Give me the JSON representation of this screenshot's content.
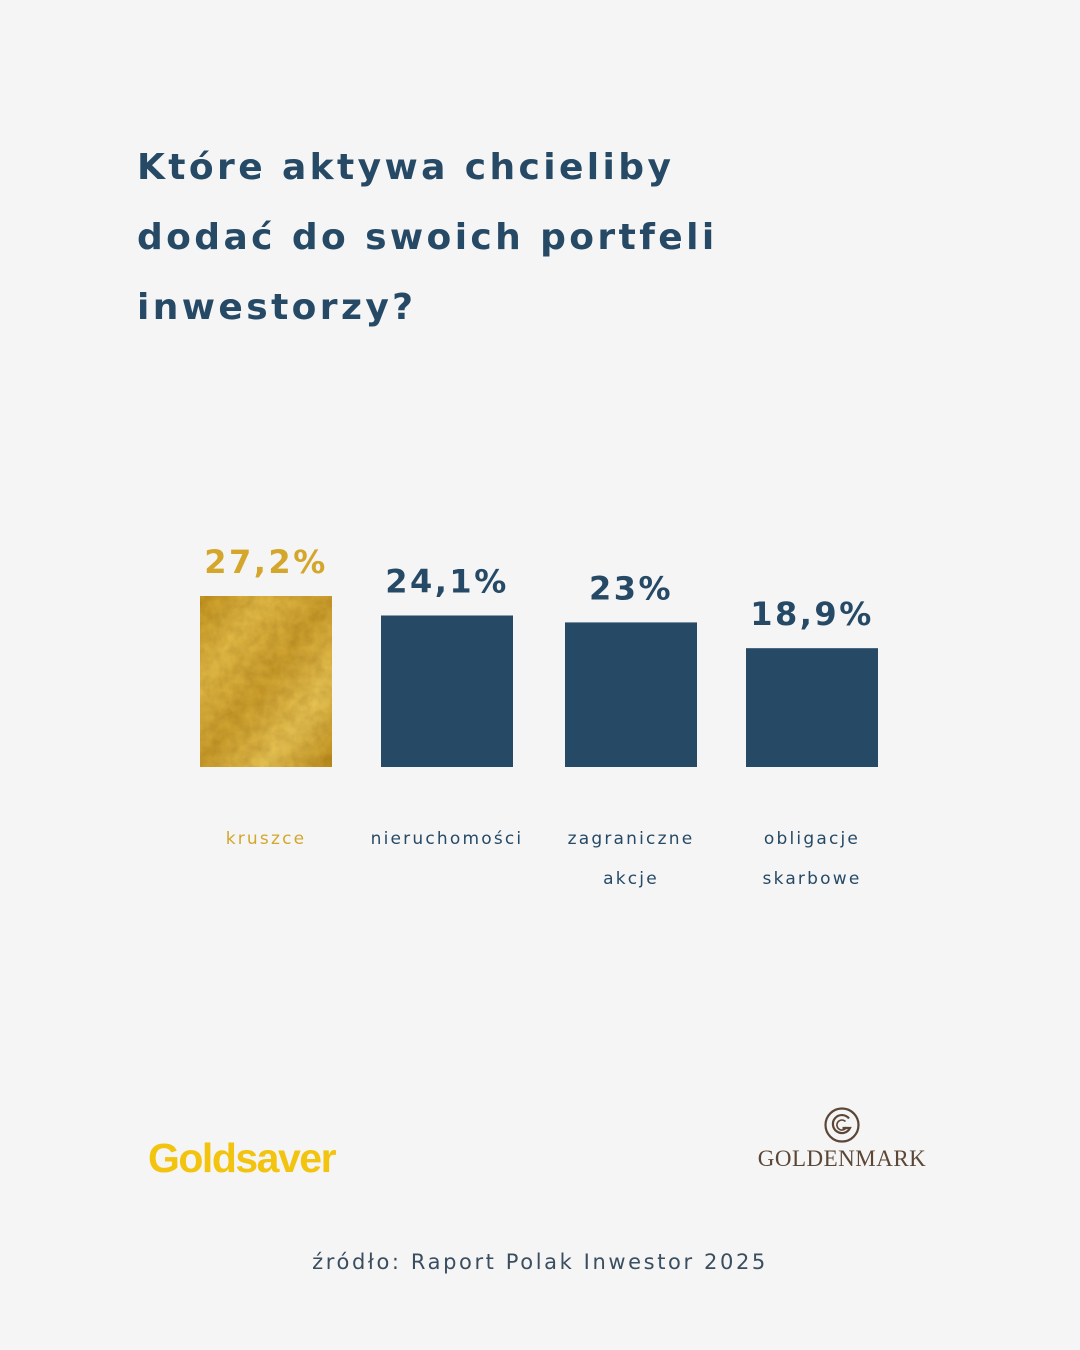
{
  "title_lines": [
    "Które aktywa chcieliby",
    "dodać do swoich portfeli",
    "inwestorzy?"
  ],
  "chart_data": {
    "type": "bar",
    "categories": [
      [
        "kruszce"
      ],
      [
        "nieruchomości"
      ],
      [
        "zagraniczne",
        "akcje"
      ],
      [
        "obligacje",
        "skarbowe"
      ]
    ],
    "values": [
      27.2,
      24.1,
      23,
      18.9
    ],
    "value_labels": [
      "27,2%",
      "24,1%",
      "23%",
      "18,9%"
    ],
    "unit": "%",
    "highlight_index": 0,
    "colors": {
      "highlight": "#d4a72c",
      "bar": "#264a66",
      "text": "#264a66"
    },
    "grid": false,
    "legend": "none"
  },
  "logos": {
    "left": "Goldsaver",
    "right": "GOLDENMARK"
  },
  "source": "źródło: Raport Polak Inwestor 2025"
}
